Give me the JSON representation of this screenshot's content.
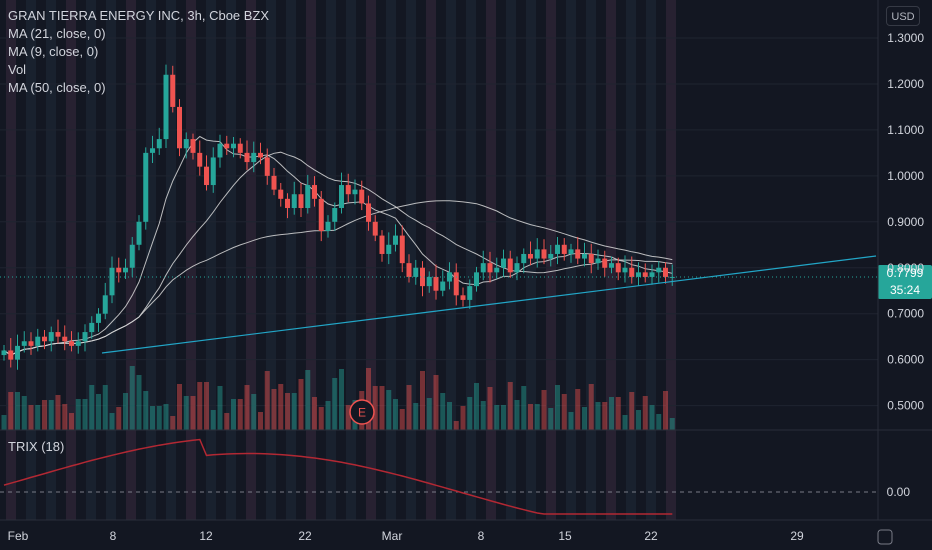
{
  "header": {
    "title": "GRAN TIERRA ENERGY INC, 3h, Cboe BZX",
    "indicators": [
      "MA (21, close, 0)",
      "MA (9, close, 0)",
      "Vol",
      "MA (50, close, 0)"
    ],
    "currency": "USD",
    "trix_label": "TRIX (18)"
  },
  "last_price": {
    "value": "0.7799",
    "countdown": "35:24"
  },
  "earnings_marker": "E",
  "colors": {
    "up": "#26a69a",
    "down": "#ef5350",
    "trendline": "#22a6c7",
    "ma": "#d8d8d8",
    "trix": "#b22833",
    "price_tag": "#26a69a"
  },
  "chart_data": {
    "type": "candlestick",
    "price_axis": {
      "ticks": [
        "1.3000",
        "1.2000",
        "1.1000",
        "1.0000",
        "0.9000",
        "0.8000",
        "0.7000",
        "0.6000",
        "0.5000"
      ],
      "range": [
        0.43,
        1.34
      ]
    },
    "trix_axis": {
      "ticks": [
        "0.00"
      ]
    },
    "time_axis": {
      "ticks": [
        "Feb",
        "8",
        "12",
        "22",
        "Mar",
        "8",
        "15",
        "22",
        "29"
      ]
    },
    "close_series": [
      0.62,
      0.6,
      0.63,
      0.64,
      0.63,
      0.65,
      0.64,
      0.66,
      0.65,
      0.64,
      0.63,
      0.64,
      0.66,
      0.68,
      0.7,
      0.74,
      0.8,
      0.79,
      0.8,
      0.85,
      0.9,
      1.05,
      1.06,
      1.08,
      1.22,
      1.15,
      1.06,
      1.08,
      1.05,
      1.02,
      0.98,
      1.04,
      1.07,
      1.06,
      1.07,
      1.05,
      1.03,
      1.05,
      1.04,
      1.0,
      0.97,
      0.95,
      0.93,
      0.96,
      0.93,
      0.98,
      0.95,
      0.88,
      0.9,
      0.93,
      0.98,
      0.96,
      0.97,
      0.94,
      0.9,
      0.87,
      0.83,
      0.85,
      0.87,
      0.81,
      0.78,
      0.8,
      0.76,
      0.78,
      0.75,
      0.77,
      0.79,
      0.74,
      0.73,
      0.76,
      0.79,
      0.81,
      0.79,
      0.8,
      0.82,
      0.79,
      0.81,
      0.83,
      0.82,
      0.84,
      0.82,
      0.83,
      0.85,
      0.83,
      0.84,
      0.82,
      0.83,
      0.81,
      0.82,
      0.8,
      0.81,
      0.79,
      0.8,
      0.78,
      0.79,
      0.78,
      0.79,
      0.8,
      0.78,
      0.78
    ],
    "earnings_index": 53,
    "last_index": 100
  }
}
